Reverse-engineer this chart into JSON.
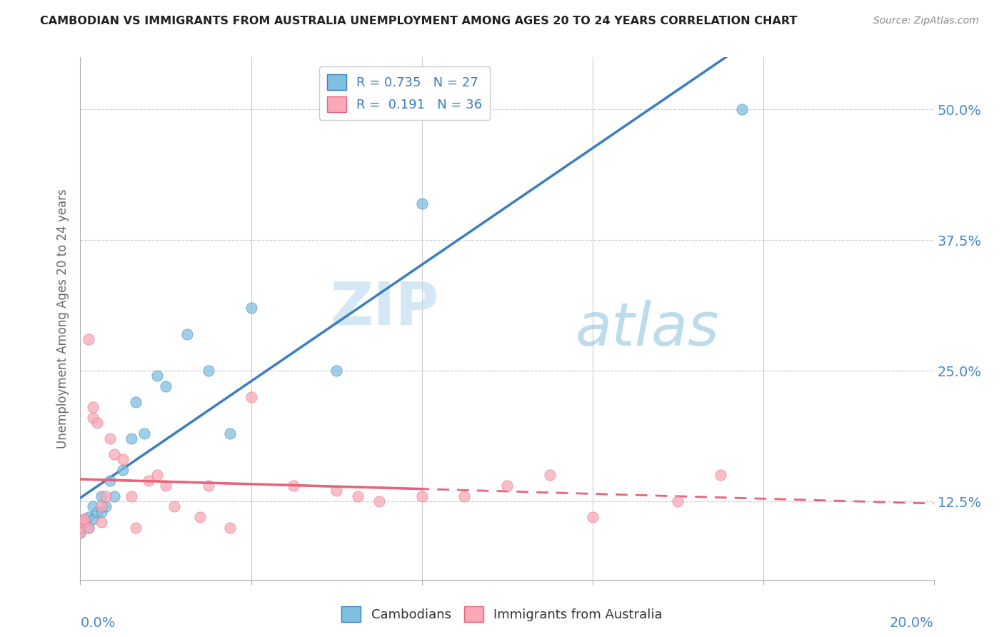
{
  "title": "CAMBODIAN VS IMMIGRANTS FROM AUSTRALIA UNEMPLOYMENT AMONG AGES 20 TO 24 YEARS CORRELATION CHART",
  "source": "Source: ZipAtlas.com",
  "ylabel": "Unemployment Among Ages 20 to 24 years",
  "watermark_zip": "ZIP",
  "watermark_atlas": "atlas",
  "cambodian_color": "#7fbfdf",
  "australia_color": "#f9a8b8",
  "cambodian_line_color": "#3a7ebf",
  "australia_line_color": "#e8637a",
  "R_cambodian": 0.735,
  "N_cambodian": 27,
  "R_australia": 0.191,
  "N_australia": 36,
  "legend_label_cambodian": "Cambodians",
  "legend_label_australia": "Immigrants from Australia",
  "cambodian_points_x": [
    0.0,
    0.0,
    0.1,
    0.1,
    0.2,
    0.2,
    0.3,
    0.3,
    0.4,
    0.5,
    0.5,
    0.6,
    0.7,
    0.8,
    1.0,
    1.2,
    1.3,
    1.5,
    1.8,
    2.0,
    2.5,
    3.0,
    3.5,
    4.0,
    6.0,
    8.0,
    15.5
  ],
  "cambodian_points_y": [
    9.5,
    10.0,
    10.5,
    10.8,
    10.0,
    11.0,
    10.8,
    12.0,
    11.5,
    11.5,
    13.0,
    12.0,
    14.5,
    13.0,
    15.5,
    18.5,
    22.0,
    19.0,
    24.5,
    23.5,
    28.5,
    25.0,
    19.0,
    31.0,
    25.0,
    41.0,
    50.0
  ],
  "australia_points_x": [
    0.0,
    0.0,
    0.1,
    0.1,
    0.2,
    0.2,
    0.3,
    0.3,
    0.4,
    0.5,
    0.5,
    0.6,
    0.7,
    0.8,
    1.0,
    1.2,
    1.3,
    1.6,
    1.8,
    2.0,
    2.2,
    2.8,
    3.0,
    3.5,
    4.0,
    5.0,
    6.0,
    6.5,
    7.0,
    8.0,
    9.0,
    10.0,
    11.0,
    12.0,
    14.0,
    15.0
  ],
  "australia_points_y": [
    9.5,
    10.0,
    10.5,
    10.8,
    10.0,
    28.0,
    20.5,
    21.5,
    20.0,
    10.5,
    12.0,
    13.0,
    18.5,
    17.0,
    16.5,
    13.0,
    10.0,
    14.5,
    15.0,
    14.0,
    12.0,
    11.0,
    14.0,
    10.0,
    22.5,
    14.0,
    13.5,
    13.0,
    12.5,
    13.0,
    13.0,
    14.0,
    15.0,
    11.0,
    12.5,
    15.0
  ],
  "xlim": [
    0.0,
    20.0
  ],
  "ylim": [
    5.0,
    55.0
  ],
  "ytick_vals": [
    12.5,
    25.0,
    37.5,
    50.0
  ],
  "ytick_labels": [
    "12.5%",
    "25.0%",
    "37.5%",
    "50.0%"
  ],
  "xtick_vals": [
    0.0,
    4.0,
    8.0,
    12.0,
    16.0,
    20.0
  ],
  "figsize": [
    14.06,
    8.92
  ],
  "dpi": 100
}
